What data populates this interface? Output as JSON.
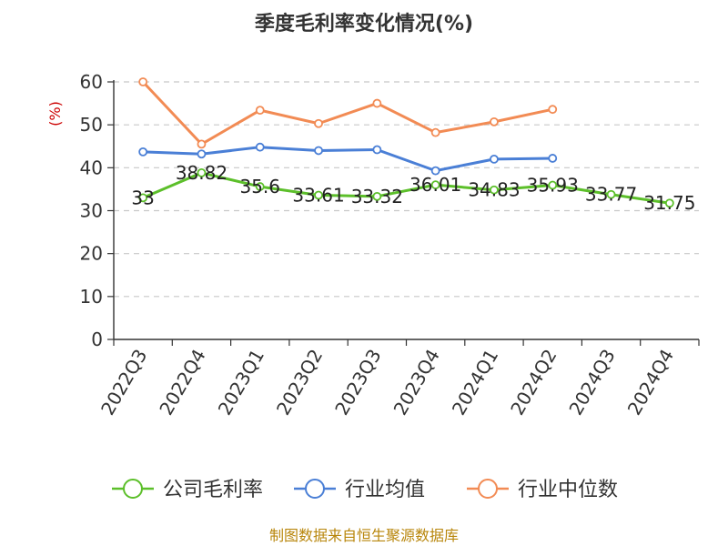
{
  "chart_data": {
    "type": "line",
    "title": "季度毛利率变化情况(%)",
    "ylabel": "(%)",
    "xlabel": "",
    "ylim": [
      0,
      60
    ],
    "yticks": [
      0,
      10,
      20,
      30,
      40,
      50,
      60
    ],
    "categories": [
      "2022Q3",
      "2022Q4",
      "2023Q1",
      "2023Q2",
      "2023Q3",
      "2023Q4",
      "2024Q1",
      "2024Q2",
      "2024Q3",
      "2024Q4"
    ],
    "grid": true,
    "legend_position": "bottom",
    "series": [
      {
        "name": "公司毛利率",
        "color": "#5cbf2a",
        "values": [
          33,
          38.82,
          35.6,
          33.61,
          33.32,
          36.01,
          34.83,
          35.93,
          33.77,
          31.75
        ],
        "labels": [
          "33",
          "38.82",
          "35.6",
          "33.61",
          "33.32",
          "36.01",
          "34.83",
          "35.93",
          "33.77",
          "31.75"
        ]
      },
      {
        "name": "行业均值",
        "color": "#4a7fd6",
        "values": [
          43.7,
          43.2,
          44.8,
          44.0,
          44.2,
          39.3,
          42.0,
          42.2,
          null,
          null
        ]
      },
      {
        "name": "行业中位数",
        "color": "#f28b54",
        "values": [
          60.0,
          45.5,
          53.4,
          50.3,
          55.0,
          48.2,
          50.7,
          53.6,
          null,
          null
        ]
      }
    ],
    "source": "制图数据来自恒生聚源数据库"
  }
}
